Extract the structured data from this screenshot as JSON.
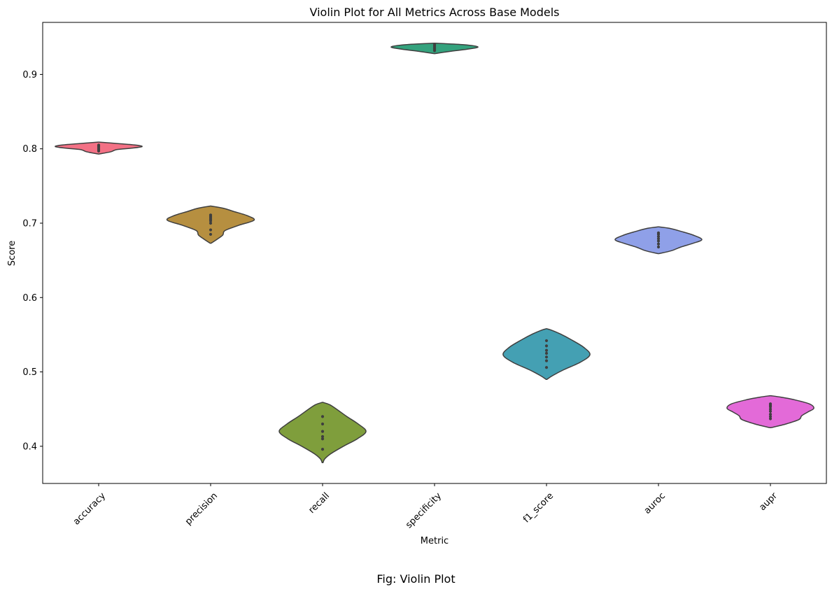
{
  "caption": "Fig: Violin Plot",
  "chart_data": {
    "type": "violin",
    "title": "Violin Plot for All Metrics Across Base Models",
    "xlabel": "Metric",
    "ylabel": "Score",
    "ylim": [
      0.35,
      0.97
    ],
    "yticks": [
      0.4,
      0.5,
      0.6,
      0.7,
      0.8,
      0.9
    ],
    "ytick_labels": [
      "0.4",
      "0.5",
      "0.6",
      "0.7",
      "0.8",
      "0.9"
    ],
    "grid": false,
    "categories": [
      "accuracy",
      "precision",
      "recall",
      "specificity",
      "f1_score",
      "auroc",
      "aupr"
    ],
    "violins": [
      {
        "metric": "accuracy",
        "color": "#f37185",
        "min": 0.793,
        "max": 0.809,
        "profile": [
          [
            0.793,
            0.01
          ],
          [
            0.796,
            0.28
          ],
          [
            0.799,
            0.42
          ],
          [
            0.801,
            0.78
          ],
          [
            0.803,
            1.0
          ],
          [
            0.805,
            0.86
          ],
          [
            0.807,
            0.45
          ],
          [
            0.809,
            0.01
          ]
        ],
        "points": [
          0.797,
          0.799,
          0.801,
          0.803,
          0.804,
          0.805
        ]
      },
      {
        "metric": "precision",
        "color": "#b68f40",
        "min": 0.673,
        "max": 0.723,
        "profile": [
          [
            0.673,
            0.01
          ],
          [
            0.678,
            0.14
          ],
          [
            0.684,
            0.28
          ],
          [
            0.69,
            0.33
          ],
          [
            0.697,
            0.64
          ],
          [
            0.704,
            1.0
          ],
          [
            0.71,
            0.85
          ],
          [
            0.716,
            0.52
          ],
          [
            0.72,
            0.3
          ],
          [
            0.723,
            0.01
          ]
        ],
        "points": [
          0.685,
          0.691,
          0.7,
          0.703,
          0.705,
          0.707,
          0.709,
          0.711
        ]
      },
      {
        "metric": "recall",
        "color": "#7f9e3c",
        "min": 0.378,
        "max": 0.459,
        "profile": [
          [
            0.378,
            0.01
          ],
          [
            0.383,
            0.05
          ],
          [
            0.39,
            0.19
          ],
          [
            0.4,
            0.48
          ],
          [
            0.41,
            0.8
          ],
          [
            0.42,
            1.0
          ],
          [
            0.43,
            0.82
          ],
          [
            0.44,
            0.56
          ],
          [
            0.45,
            0.32
          ],
          [
            0.456,
            0.16
          ],
          [
            0.459,
            0.01
          ]
        ],
        "points": [
          0.396,
          0.41,
          0.413,
          0.42,
          0.43,
          0.44
        ]
      },
      {
        "metric": "specificity",
        "color": "#34a27d",
        "min": 0.928,
        "max": 0.942,
        "profile": [
          [
            0.928,
            0.01
          ],
          [
            0.931,
            0.35
          ],
          [
            0.934,
            0.76
          ],
          [
            0.937,
            1.0
          ],
          [
            0.94,
            0.67
          ],
          [
            0.942,
            0.01
          ]
        ],
        "points": [
          0.932,
          0.934,
          0.935,
          0.937,
          0.939,
          0.94
        ]
      },
      {
        "metric": "f1_score",
        "color": "#44a0b3",
        "min": 0.49,
        "max": 0.558,
        "profile": [
          [
            0.49,
            0.01
          ],
          [
            0.495,
            0.14
          ],
          [
            0.503,
            0.4
          ],
          [
            0.513,
            0.78
          ],
          [
            0.523,
            1.0
          ],
          [
            0.533,
            0.86
          ],
          [
            0.543,
            0.58
          ],
          [
            0.551,
            0.32
          ],
          [
            0.556,
            0.12
          ],
          [
            0.558,
            0.01
          ]
        ],
        "points": [
          0.506,
          0.515,
          0.52,
          0.525,
          0.529,
          0.535,
          0.542
        ]
      },
      {
        "metric": "auroc",
        "color": "#8fa0e8",
        "min": 0.659,
        "max": 0.695,
        "profile": [
          [
            0.659,
            0.01
          ],
          [
            0.663,
            0.3
          ],
          [
            0.668,
            0.52
          ],
          [
            0.673,
            0.8
          ],
          [
            0.678,
            1.0
          ],
          [
            0.684,
            0.8
          ],
          [
            0.689,
            0.52
          ],
          [
            0.693,
            0.26
          ],
          [
            0.695,
            0.01
          ]
        ],
        "points": [
          0.668,
          0.672,
          0.676,
          0.679,
          0.682,
          0.685,
          0.687
        ]
      },
      {
        "metric": "aupr",
        "color": "#e36ad8",
        "min": 0.425,
        "max": 0.468,
        "profile": [
          [
            0.425,
            0.01
          ],
          [
            0.43,
            0.36
          ],
          [
            0.436,
            0.66
          ],
          [
            0.441,
            0.72
          ],
          [
            0.446,
            0.86
          ],
          [
            0.451,
            1.0
          ],
          [
            0.457,
            0.9
          ],
          [
            0.463,
            0.52
          ],
          [
            0.466,
            0.25
          ],
          [
            0.468,
            0.01
          ]
        ],
        "points": [
          0.437,
          0.44,
          0.443,
          0.447,
          0.45,
          0.453,
          0.455,
          0.457
        ]
      }
    ]
  }
}
